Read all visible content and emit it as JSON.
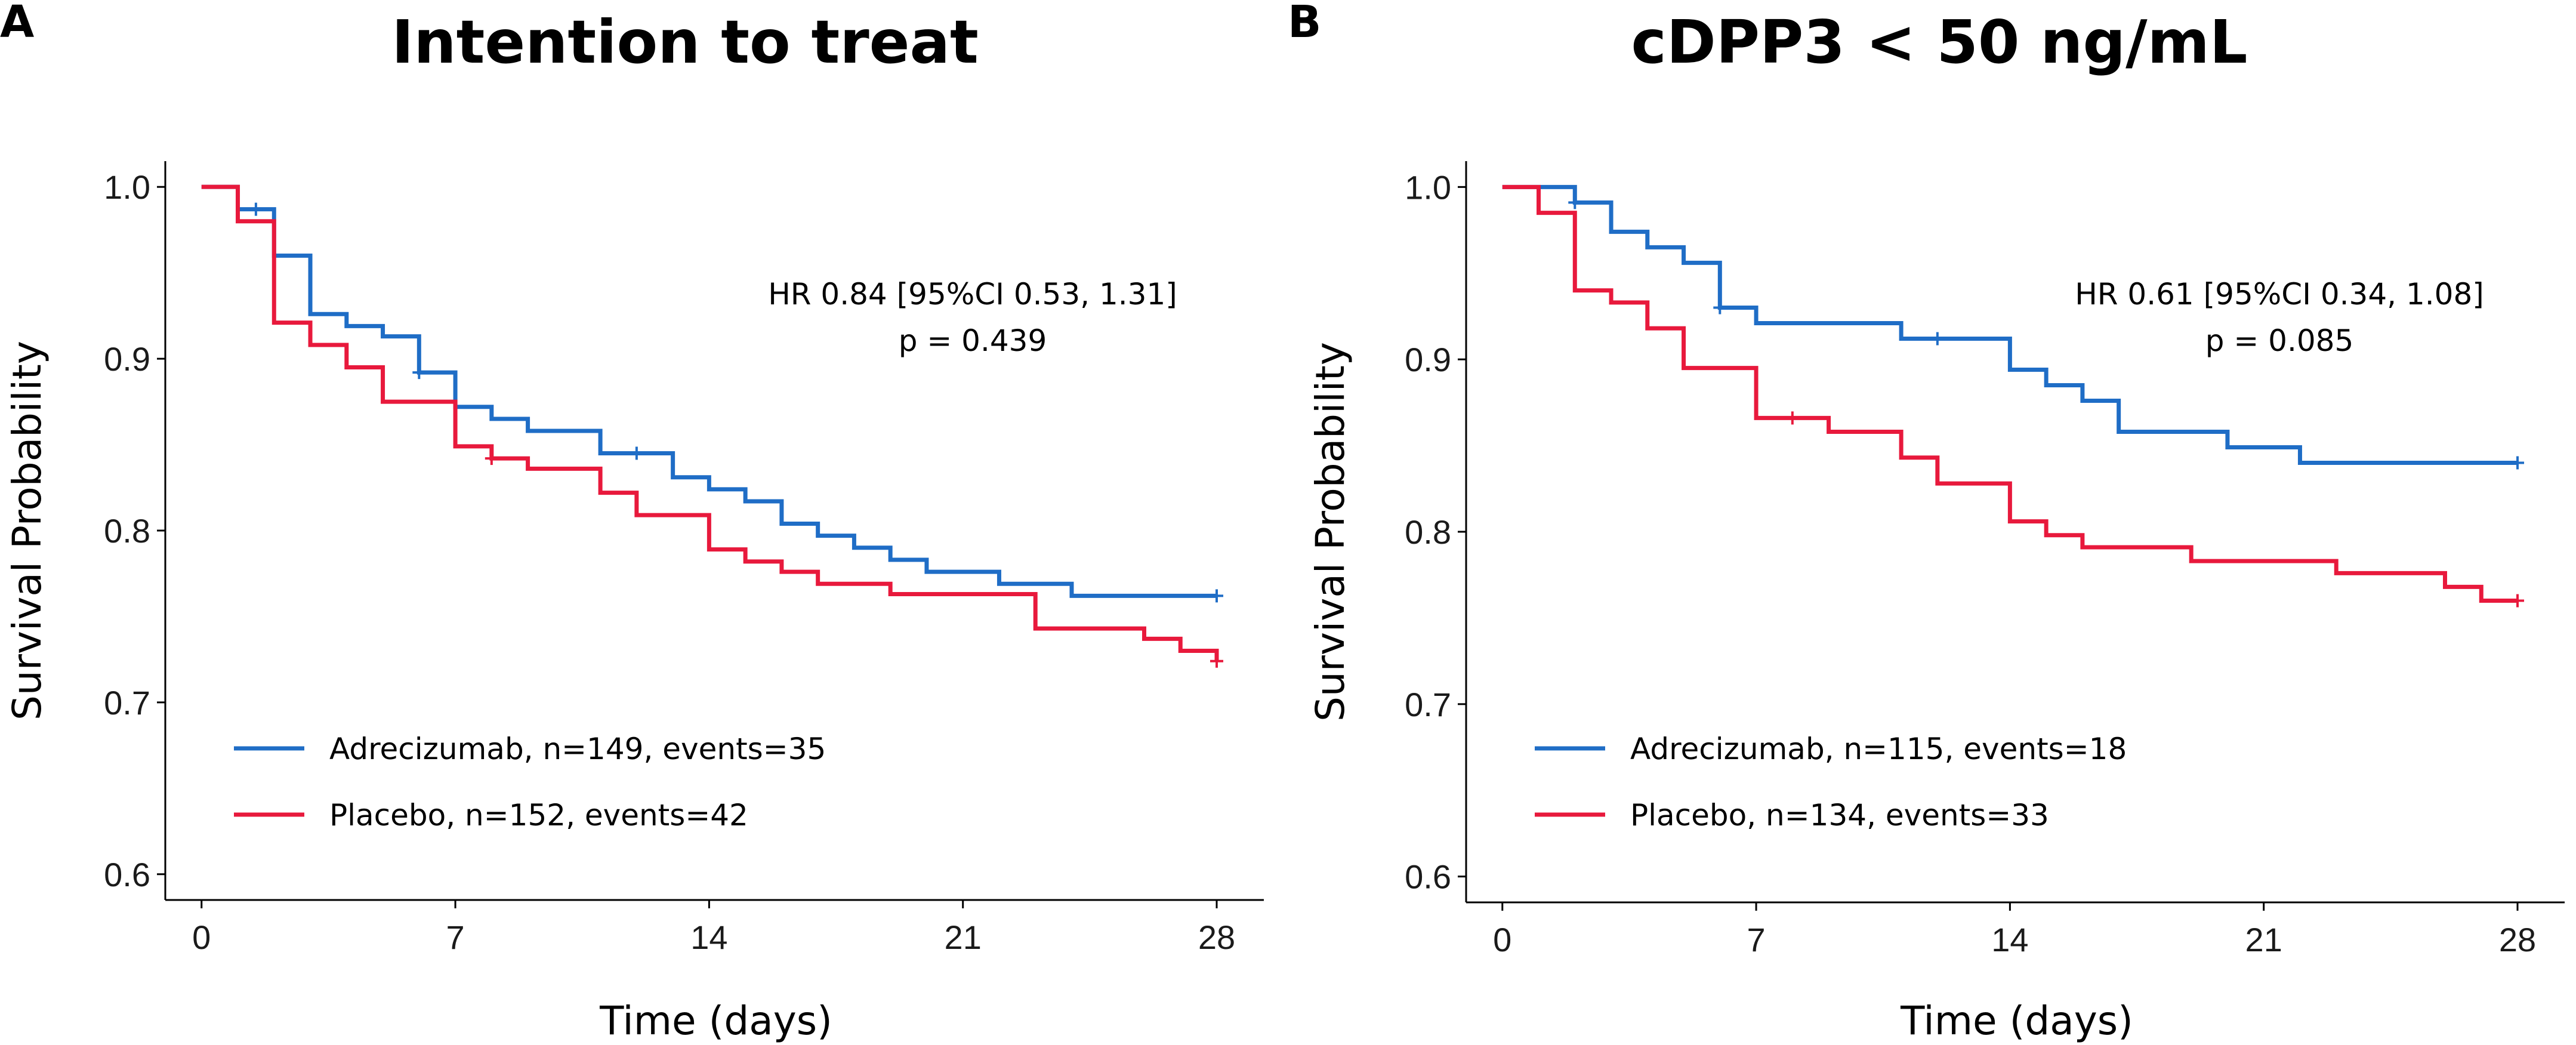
{
  "chart_data": [
    {
      "type": "line",
      "panel_label": "A",
      "title": "Intention to treat",
      "xlabel": "Time (days)",
      "ylabel": "Survival Probability",
      "xlim": [
        -1,
        29.3
      ],
      "ylim": [
        0.585,
        1.015
      ],
      "xticks": [
        "0",
        "7",
        "14",
        "21",
        "28"
      ],
      "xtick_values": [
        0,
        7,
        14,
        21,
        28
      ],
      "yticks": [
        "0.6",
        "0.7",
        "0.8",
        "0.9",
        "1.0"
      ],
      "ytick_values": [
        0.6,
        0.7,
        0.8,
        0.9,
        1.0
      ],
      "grid": false,
      "annotation": [
        "HR 0.84 [95%CI 0.53, 1.31]",
        "p = 0.439"
      ],
      "legend_position": "bottom-left",
      "series": [
        {
          "name": "Adrecizumab, n=149, events=35",
          "color": "#1F6DC6",
          "steps": [
            [
              0,
              1.0
            ],
            [
              1,
              0.987
            ],
            [
              2,
              0.96
            ],
            [
              3,
              0.926
            ],
            [
              4,
              0.919
            ],
            [
              5,
              0.913
            ],
            [
              6,
              0.892
            ],
            [
              7,
              0.872
            ],
            [
              8,
              0.865
            ],
            [
              9,
              0.858
            ],
            [
              11,
              0.845
            ],
            [
              13,
              0.831
            ],
            [
              14,
              0.824
            ],
            [
              15,
              0.817
            ],
            [
              16,
              0.804
            ],
            [
              17,
              0.797
            ],
            [
              18,
              0.79
            ],
            [
              19,
              0.783
            ],
            [
              20,
              0.776
            ],
            [
              22,
              0.769
            ],
            [
              24,
              0.762
            ],
            [
              28,
              0.762
            ]
          ],
          "censor_times": [
            1.5,
            6,
            12,
            28
          ]
        },
        {
          "name": "Placebo, n=152, events=42",
          "color": "#E8193C",
          "steps": [
            [
              0,
              1.0
            ],
            [
              1,
              0.98
            ],
            [
              2,
              0.921
            ],
            [
              3,
              0.908
            ],
            [
              4,
              0.895
            ],
            [
              5,
              0.875
            ],
            [
              7,
              0.849
            ],
            [
              8,
              0.842
            ],
            [
              9,
              0.836
            ],
            [
              11,
              0.822
            ],
            [
              12,
              0.809
            ],
            [
              14,
              0.789
            ],
            [
              15,
              0.782
            ],
            [
              16,
              0.776
            ],
            [
              17,
              0.769
            ],
            [
              19,
              0.763
            ],
            [
              23,
              0.743
            ],
            [
              26,
              0.737
            ],
            [
              27,
              0.73
            ],
            [
              28,
              0.724
            ]
          ],
          "censor_times": [
            8,
            28
          ]
        }
      ]
    },
    {
      "type": "line",
      "panel_label": "B",
      "title": "cDPP3 < 50 ng/mL",
      "xlabel": "Time (days)",
      "ylabel": "Survival Probability",
      "xlim": [
        -1,
        29.3
      ],
      "ylim": [
        0.585,
        1.015
      ],
      "xticks": [
        "0",
        "7",
        "14",
        "21",
        "28"
      ],
      "xtick_values": [
        0,
        7,
        14,
        21,
        28
      ],
      "yticks": [
        "0.6",
        "0.7",
        "0.8",
        "0.9",
        "1.0"
      ],
      "ytick_values": [
        0.6,
        0.7,
        0.8,
        0.9,
        1.0
      ],
      "grid": false,
      "annotation": [
        "HR 0.61 [95%CI 0.34, 1.08]",
        "p = 0.085"
      ],
      "legend_position": "bottom-left",
      "series": [
        {
          "name": "Adrecizumab, n=115, events=18",
          "color": "#1F6DC6",
          "steps": [
            [
              0,
              1.0
            ],
            [
              1,
              1.0
            ],
            [
              2,
              0.991
            ],
            [
              3,
              0.974
            ],
            [
              4,
              0.965
            ],
            [
              5,
              0.956
            ],
            [
              6,
              0.93
            ],
            [
              7,
              0.921
            ],
            [
              11,
              0.912
            ],
            [
              14,
              0.894
            ],
            [
              15,
              0.885
            ],
            [
              16,
              0.876
            ],
            [
              17,
              0.858
            ],
            [
              20,
              0.849
            ],
            [
              22,
              0.84
            ],
            [
              28,
              0.84
            ]
          ],
          "censor_times": [
            2,
            6,
            12,
            28
          ]
        },
        {
          "name": "Placebo, n=134, events=33",
          "color": "#E8193C",
          "steps": [
            [
              0,
              1.0
            ],
            [
              1,
              0.985
            ],
            [
              2,
              0.94
            ],
            [
              3,
              0.933
            ],
            [
              4,
              0.918
            ],
            [
              5,
              0.895
            ],
            [
              7,
              0.866
            ],
            [
              9,
              0.858
            ],
            [
              11,
              0.843
            ],
            [
              12,
              0.828
            ],
            [
              14,
              0.806
            ],
            [
              15,
              0.798
            ],
            [
              16,
              0.791
            ],
            [
              19,
              0.783
            ],
            [
              23,
              0.776
            ],
            [
              26,
              0.768
            ],
            [
              27,
              0.76
            ],
            [
              28,
              0.76
            ]
          ],
          "censor_times": [
            8,
            28
          ]
        }
      ]
    }
  ]
}
